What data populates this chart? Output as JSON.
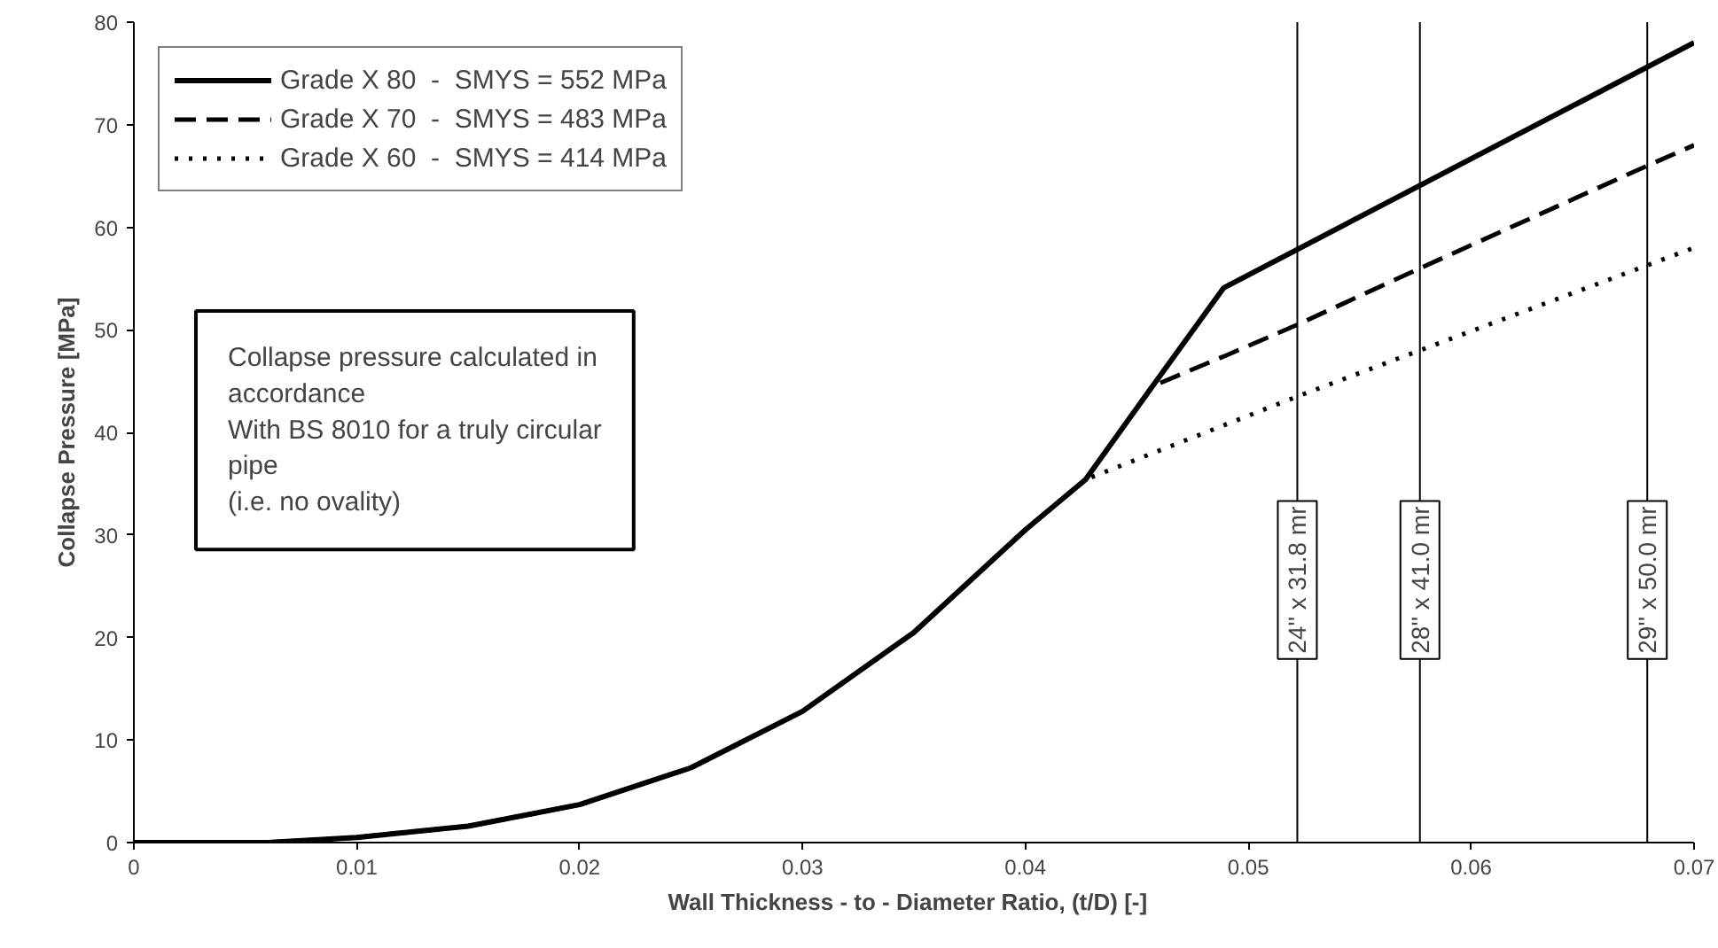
{
  "chart_data": {
    "type": "line",
    "xlabel": "Wall Thickness - to - Diameter Ratio,  (t/D)  [-]",
    "ylabel": "Collapse Pressure [MPa]",
    "xlim": [
      0,
      0.07
    ],
    "xticks": [
      0,
      0.01,
      0.02,
      0.03,
      0.04,
      0.05,
      0.06,
      0.07
    ],
    "ylim": [
      0,
      80
    ],
    "yticks": [
      0,
      10,
      20,
      30,
      40,
      50,
      60,
      70,
      80
    ],
    "grid": false,
    "legend": "top left",
    "marker": "none",
    "series": [
      {
        "name": "Grade X 80  -  SMYS = 552 MPa",
        "color": "#000000",
        "line_style": "solid",
        "x": [
          0,
          0.006,
          0.01,
          0.015,
          0.02,
          0.025,
          0.03,
          0.035,
          0.04,
          0.0427,
          0.0457,
          0.0489,
          0.07
        ],
        "values": [
          0,
          0,
          0.5,
          1.6,
          3.7,
          7.3,
          12.8,
          20.5,
          30.5,
          35.4,
          44.5,
          54.1,
          78
        ]
      },
      {
        "name": "Grade X 70  -  SMYS = 483 MPa",
        "color": "#000000",
        "line_style": "dashed",
        "x": [
          0,
          0.006,
          0.01,
          0.015,
          0.02,
          0.025,
          0.03,
          0.035,
          0.04,
          0.0427,
          0.0457,
          0.049,
          0.0522,
          0.0577,
          0.0679,
          0.07
        ],
        "values": [
          0,
          0,
          0.5,
          1.6,
          3.7,
          7.3,
          12.8,
          20.5,
          30.5,
          35.4,
          44.5,
          47.5,
          50.5,
          56,
          66,
          68
        ]
      },
      {
        "name": "Grade X 60  -  SMYS = 414 MPa",
        "color": "#000000",
        "line_style": "dotted",
        "x": [
          0,
          0.006,
          0.01,
          0.015,
          0.02,
          0.025,
          0.03,
          0.035,
          0.04,
          0.0427,
          0.0522,
          0.0577,
          0.07
        ],
        "values": [
          0,
          0,
          0.5,
          1.6,
          3.7,
          7.3,
          12.8,
          20.5,
          30.5,
          35.4,
          43.5,
          48,
          58
        ]
      }
    ],
    "ref_lines": [
      {
        "axis": "x",
        "value": 0.0522,
        "label": "24'' x 31.8 mr",
        "color": "#000000"
      },
      {
        "axis": "x",
        "value": 0.0577,
        "label": "28'' x 41.0 mr",
        "color": "#000000"
      },
      {
        "axis": "x",
        "value": 0.0679,
        "label": "29'' x 50.0 mr",
        "color": "#000000"
      }
    ],
    "annotations": [
      "Collapse pressure calculated in\naccordance\nWith BS 8010 for a truly circular\npipe\n(i.e. no ovality)"
    ]
  }
}
